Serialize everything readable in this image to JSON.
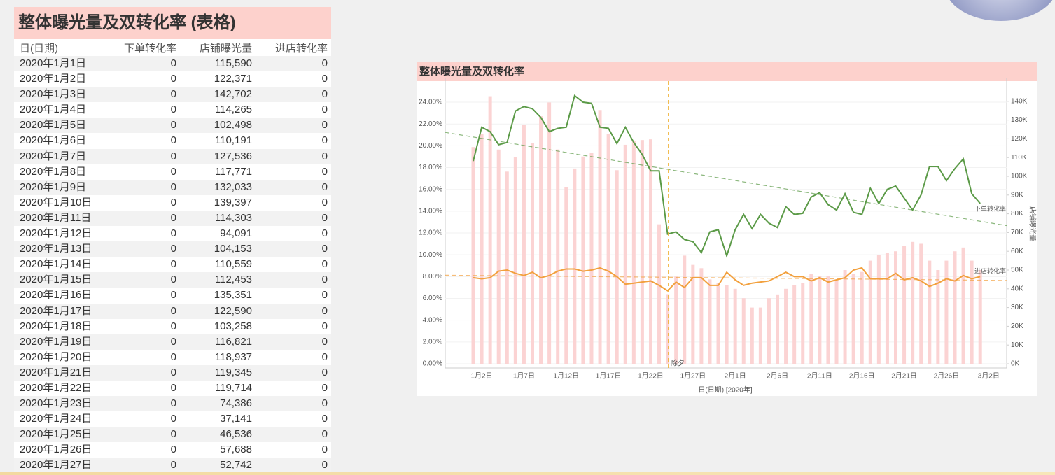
{
  "table": {
    "title": "整体曝光量及双转化率 (表格)",
    "header": [
      "日(日期)",
      "下单转化率",
      "店铺曝光量",
      "进店转化率"
    ],
    "rows": [
      [
        "2020年1月1日",
        "0",
        "115,590",
        "0"
      ],
      [
        "2020年1月2日",
        "0",
        "122,371",
        "0"
      ],
      [
        "2020年1月3日",
        "0",
        "142,702",
        "0"
      ],
      [
        "2020年1月4日",
        "0",
        "114,265",
        "0"
      ],
      [
        "2020年1月5日",
        "0",
        "102,498",
        "0"
      ],
      [
        "2020年1月6日",
        "0",
        "110,191",
        "0"
      ],
      [
        "2020年1月7日",
        "0",
        "127,536",
        "0"
      ],
      [
        "2020年1月8日",
        "0",
        "117,771",
        "0"
      ],
      [
        "2020年1月9日",
        "0",
        "132,033",
        "0"
      ],
      [
        "2020年1月10日",
        "0",
        "139,397",
        "0"
      ],
      [
        "2020年1月11日",
        "0",
        "114,303",
        "0"
      ],
      [
        "2020年1月12日",
        "0",
        "94,091",
        "0"
      ],
      [
        "2020年1月13日",
        "0",
        "104,153",
        "0"
      ],
      [
        "2020年1月14日",
        "0",
        "110,559",
        "0"
      ],
      [
        "2020年1月15日",
        "0",
        "112,453",
        "0"
      ],
      [
        "2020年1月16日",
        "0",
        "135,351",
        "0"
      ],
      [
        "2020年1月17日",
        "0",
        "122,590",
        "0"
      ],
      [
        "2020年1月18日",
        "0",
        "103,258",
        "0"
      ],
      [
        "2020年1月19日",
        "0",
        "116,821",
        "0"
      ],
      [
        "2020年1月20日",
        "0",
        "118,937",
        "0"
      ],
      [
        "2020年1月21日",
        "0",
        "119,345",
        "0"
      ],
      [
        "2020年1月22日",
        "0",
        "119,714",
        "0"
      ],
      [
        "2020年1月23日",
        "0",
        "74,386",
        "0"
      ],
      [
        "2020年1月24日",
        "0",
        "37,141",
        "0"
      ],
      [
        "2020年1月25日",
        "0",
        "46,536",
        "0"
      ],
      [
        "2020年1月26日",
        "0",
        "57,688",
        "0"
      ],
      [
        "2020年1月27日",
        "0",
        "52,742",
        "0"
      ]
    ]
  },
  "chart_data": {
    "type": "combo",
    "title": "整体曝光量及双转化率",
    "xlabel": "日(日期) [2020年]",
    "y2label": "店铺曝光量",
    "categories": [
      null,
      "1月2日",
      null,
      null,
      null,
      null,
      "1月7日",
      null,
      null,
      null,
      null,
      "1月12日",
      null,
      null,
      null,
      null,
      "1月17日",
      null,
      null,
      null,
      null,
      "1月22日",
      null,
      null,
      null,
      null,
      "1月27日",
      null,
      null,
      null,
      null,
      "2月1日",
      null,
      null,
      null,
      null,
      "2月6日",
      null,
      null,
      null,
      null,
      "2月11日",
      null,
      null,
      null,
      null,
      "2月16日",
      null,
      null,
      null,
      null,
      "2月21日",
      null,
      null,
      null,
      null,
      "2月26日",
      null,
      null,
      null,
      null,
      "3月2日"
    ],
    "series": [
      {
        "name": "下单转化率",
        "type": "line",
        "axis": "y",
        "color": "#5b9a47",
        "trendline": true,
        "values": [
          18.6,
          21.7,
          21.3,
          20.1,
          20.3,
          23.2,
          23.6,
          23.4,
          22.6,
          21.3,
          21.6,
          21.7,
          24.6,
          24.0,
          23.9,
          21.7,
          21.6,
          20.2,
          21.7,
          20.3,
          19.2,
          17.7,
          17.7,
          11.9,
          12.1,
          11.4,
          11.2,
          10.2,
          12.1,
          12.3,
          9.9,
          12.3,
          13.7,
          12.4,
          13.7,
          12.9,
          12.5,
          14.4,
          13.7,
          13.8,
          15.3,
          15.7,
          14.6,
          14.1,
          15.6,
          13.9,
          13.7,
          16.1,
          14.7,
          16.0,
          16.3,
          15.2,
          14.1,
          15.5,
          18.1,
          18.1,
          16.8,
          17.9,
          18.8,
          15.6,
          14.7,
          null
        ]
      },
      {
        "name": "进店转化率",
        "type": "line",
        "axis": "y",
        "color": "#f2a03d",
        "trendline": true,
        "values": [
          7.9,
          7.8,
          7.9,
          8.5,
          8.6,
          8.3,
          8.1,
          8.4,
          7.9,
          8.1,
          8.5,
          8.7,
          8.7,
          8.5,
          8.6,
          8.8,
          8.5,
          8.0,
          7.3,
          7.4,
          7.5,
          7.6,
          7.2,
          6.7,
          7.5,
          7.0,
          7.9,
          7.9,
          7.2,
          7.2,
          8.4,
          7.7,
          7.2,
          7.4,
          7.5,
          7.6,
          8.0,
          8.4,
          8.0,
          8.0,
          7.6,
          7.9,
          7.5,
          7.7,
          7.9,
          8.6,
          8.8,
          7.8,
          7.8,
          7.8,
          8.3,
          7.7,
          7.9,
          7.6,
          7.1,
          7.4,
          7.8,
          7.6,
          8.1,
          7.8,
          8.0,
          null
        ]
      },
      {
        "name": "店铺曝光量",
        "type": "bar",
        "axis": "y2",
        "color": "#fbd3d3",
        "values": [
          115590,
          122371,
          142702,
          114265,
          102498,
          110191,
          127536,
          117771,
          132033,
          139397,
          114303,
          94091,
          104153,
          110559,
          112453,
          135351,
          122590,
          103258,
          116821,
          118937,
          119345,
          119714,
          74386,
          37141,
          46536,
          57688,
          52742,
          51000,
          45000,
          43000,
          42000,
          40000,
          35000,
          30000,
          30000,
          35000,
          37000,
          40000,
          42000,
          43000,
          48000,
          47000,
          47000,
          45000,
          50000,
          48000,
          49000,
          55000,
          58000,
          59000,
          60000,
          63000,
          65000,
          64000,
          55000,
          50000,
          55000,
          60000,
          62000,
          55000,
          50000,
          null
        ]
      }
    ],
    "reference_line": {
      "label": "除夕",
      "color": "#f0b030"
    },
    "ylim": [
      0,
      25.8
    ],
    "yticks": [
      {
        "value": 0,
        "label": "0.00%"
      },
      {
        "value": 2,
        "label": "2.00%"
      },
      {
        "value": 4,
        "label": "4.00%"
      },
      {
        "value": 6,
        "label": "6.00%"
      },
      {
        "value": 8,
        "label": "8.00%"
      },
      {
        "value": 10,
        "label": "10.00%"
      },
      {
        "value": 12,
        "label": "12.00%"
      },
      {
        "value": 14,
        "label": "14.00%"
      },
      {
        "value": 16,
        "label": "16.00%"
      },
      {
        "value": 18,
        "label": "18.00%"
      },
      {
        "value": 20,
        "label": "20.00%"
      },
      {
        "value": 22,
        "label": "22.00%"
      },
      {
        "value": 24,
        "label": "24.00%"
      }
    ],
    "y2lim": [
      0,
      150000
    ],
    "y2ticks": [
      {
        "value": 0,
        "label": "0K"
      },
      {
        "value": 10000,
        "label": "10K"
      },
      {
        "value": 20000,
        "label": "20K"
      },
      {
        "value": 30000,
        "label": "30K"
      },
      {
        "value": 40000,
        "label": "40K"
      },
      {
        "value": 50000,
        "label": "50K"
      },
      {
        "value": 60000,
        "label": "60K"
      },
      {
        "value": 70000,
        "label": "70K"
      },
      {
        "value": 80000,
        "label": "80K"
      },
      {
        "value": 90000,
        "label": "90K"
      },
      {
        "value": 100000,
        "label": "100K"
      },
      {
        "value": 110000,
        "label": "110K"
      },
      {
        "value": 120000,
        "label": "120K"
      },
      {
        "value": 130000,
        "label": "130K"
      },
      {
        "value": 140000,
        "label": "140K"
      }
    ],
    "grid": true
  }
}
